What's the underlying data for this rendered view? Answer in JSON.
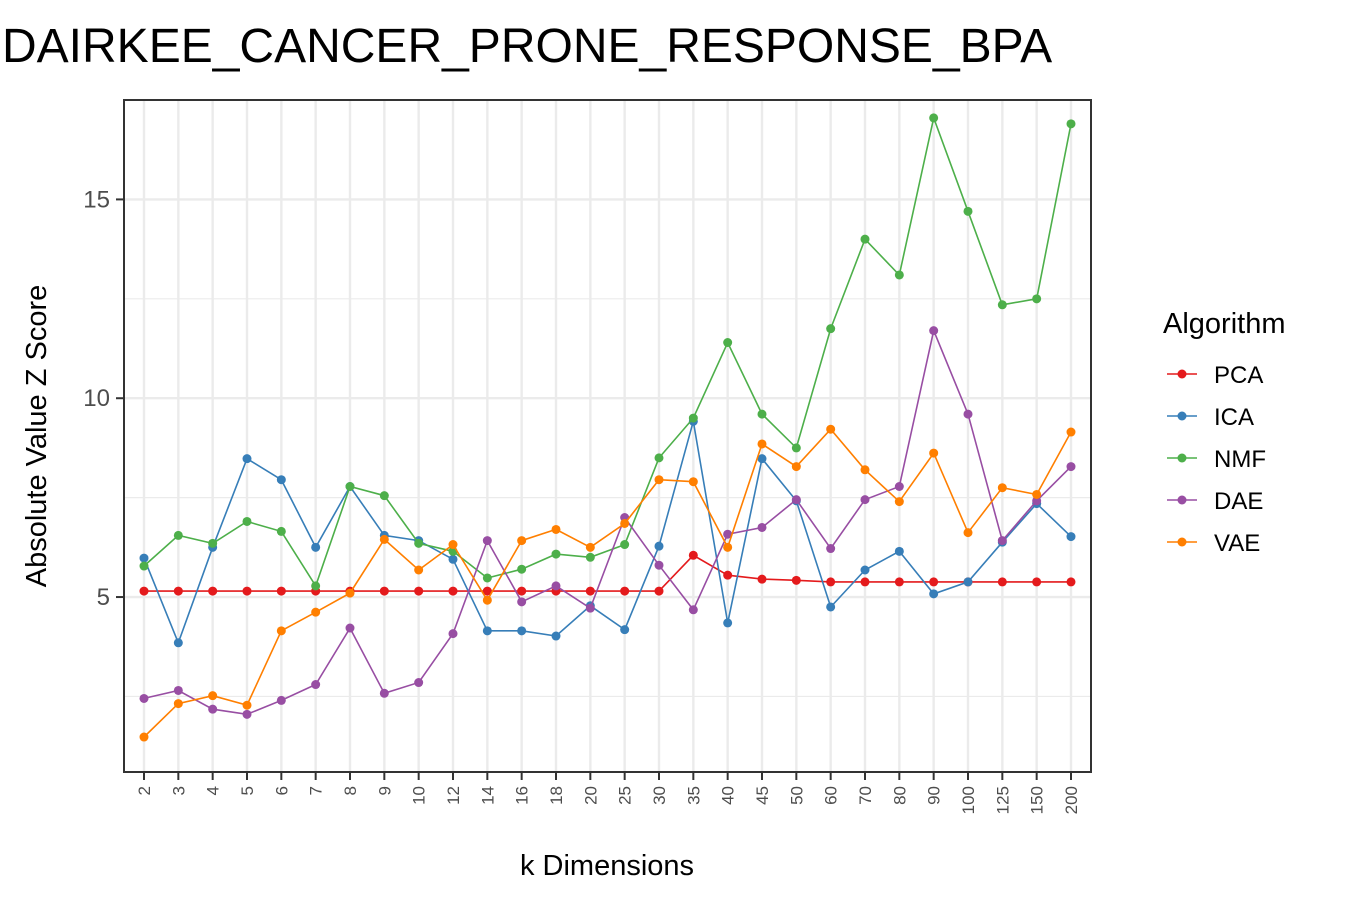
{
  "chart_data": {
    "type": "line",
    "title": "DAIRKEE_CANCER_PRONE_RESPONSE_BPA",
    "xlabel": "k Dimensions",
    "ylabel": "Absolute Value Z Score",
    "categories": [
      "2",
      "3",
      "4",
      "5",
      "6",
      "7",
      "8",
      "9",
      "10",
      "12",
      "14",
      "16",
      "18",
      "20",
      "25",
      "30",
      "35",
      "40",
      "45",
      "50",
      "60",
      "70",
      "80",
      "90",
      "100",
      "125",
      "150",
      "200"
    ],
    "yticks": [
      5,
      10,
      15
    ],
    "ylim": [
      0.6,
      17.5
    ],
    "grid": true,
    "legend": {
      "title": "Algorithm",
      "position": "right"
    },
    "series": [
      {
        "name": "PCA",
        "color": "#E41A1C",
        "values": [
          5.15,
          5.15,
          5.15,
          5.15,
          5.15,
          5.15,
          5.15,
          5.15,
          5.15,
          5.15,
          5.15,
          5.15,
          5.15,
          5.15,
          5.15,
          5.15,
          6.05,
          5.55,
          5.45,
          5.42,
          5.38,
          5.38,
          5.38,
          5.38,
          5.38,
          5.38,
          5.38,
          5.38
        ]
      },
      {
        "name": "ICA",
        "color": "#377EB8",
        "values": [
          5.98,
          3.85,
          6.25,
          8.48,
          7.95,
          6.25,
          7.78,
          6.55,
          6.42,
          5.95,
          4.15,
          4.15,
          4.02,
          4.78,
          4.18,
          6.28,
          9.42,
          4.35,
          8.48,
          7.42,
          4.75,
          5.68,
          6.15,
          5.08,
          5.38,
          6.38,
          7.35,
          6.52
        ]
      },
      {
        "name": "NMF",
        "color": "#4DAF4A",
        "values": [
          5.78,
          6.55,
          6.35,
          6.9,
          6.65,
          5.28,
          7.78,
          7.55,
          6.35,
          6.15,
          5.48,
          5.7,
          6.08,
          6.0,
          6.32,
          8.5,
          9.5,
          11.4,
          9.6,
          8.75,
          11.75,
          14.0,
          13.1,
          17.05,
          14.7,
          12.35,
          12.5,
          16.9
        ]
      },
      {
        "name": "DAE",
        "color": "#984EA3",
        "values": [
          2.45,
          2.65,
          2.18,
          2.05,
          2.4,
          2.8,
          4.22,
          2.58,
          2.85,
          4.08,
          6.42,
          4.88,
          5.28,
          4.72,
          7.0,
          5.8,
          4.68,
          6.58,
          6.75,
          7.45,
          6.22,
          7.45,
          7.78,
          11.7,
          9.6,
          6.42,
          7.42,
          8.28
        ]
      },
      {
        "name": "VAE",
        "color": "#FF7F00",
        "values": [
          1.48,
          2.32,
          2.52,
          2.28,
          4.15,
          4.62,
          5.1,
          6.45,
          5.68,
          6.32,
          4.92,
          6.42,
          6.7,
          6.25,
          6.85,
          7.95,
          7.9,
          6.25,
          8.85,
          8.28,
          9.22,
          8.2,
          7.4,
          8.62,
          6.62,
          7.75,
          7.58,
          9.15
        ]
      }
    ]
  }
}
